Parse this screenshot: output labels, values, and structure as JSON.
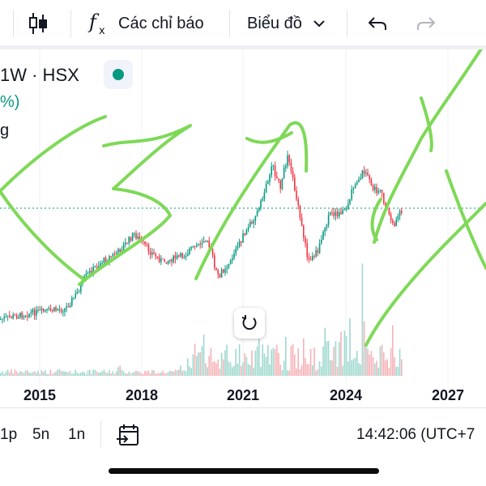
{
  "toolbar": {
    "indicators_label": "Các chỉ báo",
    "chart_type_label": "Biểu đồ"
  },
  "legend": {
    "symbol": "1W · HSX",
    "change_fragment": "%)",
    "volume_fragment": "g",
    "status_color": "#089981"
  },
  "chart": {
    "x_axis_labels": [
      "2015",
      "2018",
      "2021",
      "2024",
      "2027"
    ],
    "up_color": "#089981",
    "down_color": "#f23645",
    "annotation_color": "#7ed957"
  },
  "bottom_bar": {
    "ranges": [
      "1p",
      "5n",
      "1n"
    ],
    "clock": "14:42:06 (UTC+7"
  }
}
